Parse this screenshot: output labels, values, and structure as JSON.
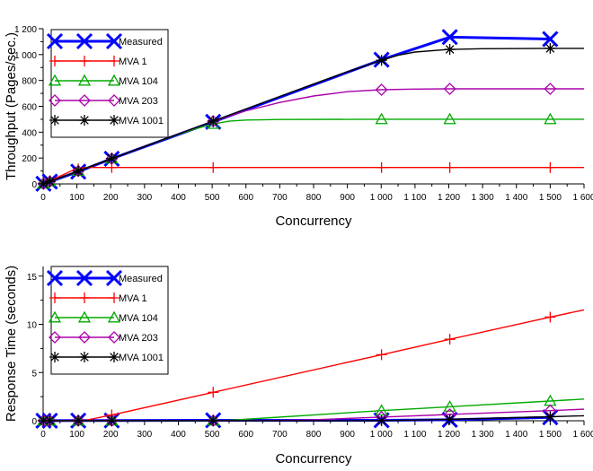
{
  "chart_data": [
    {
      "type": "line",
      "title": "",
      "xlabel": "Concurrency",
      "ylabel": "Throughput (Pages/sec.)",
      "xlim": [
        0,
        1600
      ],
      "ylim": [
        0,
        1200
      ],
      "xticks": [
        0,
        100,
        200,
        300,
        400,
        500,
        600,
        700,
        800,
        900,
        1000,
        1100,
        1200,
        1300,
        1400,
        1500,
        1600
      ],
      "xtick_labels": [
        "0",
        "100",
        "200",
        "300",
        "400",
        "500",
        "600",
        "700",
        "800",
        "900",
        "1 000",
        "1 100",
        "1 200",
        "1 300",
        "1 400",
        "1 500",
        "1 600"
      ],
      "yticks": [
        0,
        200,
        400,
        600,
        800,
        1000,
        1200
      ],
      "ytick_labels": [
        "0",
        "200",
        "400",
        "600",
        "800",
        "1 000",
        "1 200"
      ],
      "legend_position": "top-left",
      "grid": false,
      "series": [
        {
          "name": "Measured",
          "color": "#0000ff",
          "marker": "x",
          "curve": false,
          "x": [
            1,
            20,
            104,
            203,
            503,
            1001,
            1203,
            1500
          ],
          "y": [
            1,
            18,
            95,
            195,
            480,
            960,
            1135,
            1120
          ]
        },
        {
          "name": "MVA 1",
          "color": "#ff0000",
          "marker": "plus",
          "curve": true,
          "x": [
            0,
            30,
            60,
            90,
            120,
            150,
            200,
            300,
            500,
            800,
            1000,
            1200,
            1500,
            1600
          ],
          "y": [
            0,
            36,
            72,
            108,
            126,
            127,
            127,
            127,
            127,
            127,
            127,
            127,
            127,
            127
          ],
          "mx": [
            1,
            20,
            104,
            203,
            503,
            1001,
            1203,
            1500
          ]
        },
        {
          "name": "MVA 104",
          "color": "#00aa00",
          "marker": "triangle",
          "curve": true,
          "x": [
            0,
            100,
            200,
            300,
            400,
            450,
            500,
            550,
            600,
            700,
            1000,
            1200,
            1500,
            1600
          ],
          "y": [
            0,
            96,
            193,
            290,
            382,
            425,
            462,
            485,
            494,
            498,
            500,
            500,
            500,
            500
          ],
          "mx": [
            1,
            20,
            104,
            203,
            503,
            1001,
            1203,
            1500
          ]
        },
        {
          "name": "MVA 203",
          "color": "#aa00aa",
          "marker": "diamond",
          "curve": true,
          "x": [
            0,
            100,
            200,
            300,
            400,
            500,
            600,
            700,
            800,
            900,
            1000,
            1100,
            1200,
            1500,
            1600
          ],
          "y": [
            0,
            96,
            193,
            290,
            386,
            482,
            565,
            630,
            680,
            713,
            728,
            733,
            735,
            735,
            735
          ],
          "mx": [
            1,
            20,
            104,
            203,
            503,
            1001,
            1203,
            1500
          ]
        },
        {
          "name": "MVA 1001",
          "color": "#000000",
          "marker": "star",
          "curve": true,
          "x": [
            0,
            100,
            200,
            300,
            400,
            500,
            600,
            700,
            800,
            900,
            1000,
            1050,
            1100,
            1200,
            1300,
            1500,
            1600
          ],
          "y": [
            0,
            96,
            193,
            290,
            386,
            483,
            580,
            676,
            772,
            868,
            955,
            995,
            1020,
            1040,
            1045,
            1048,
            1048
          ],
          "mx": [
            1,
            20,
            104,
            203,
            503,
            1001,
            1203,
            1500
          ]
        }
      ]
    },
    {
      "type": "line",
      "title": "",
      "xlabel": "Concurrency",
      "ylabel": "Response Time (seconds)",
      "xlim": [
        0,
        1600
      ],
      "ylim": [
        0,
        16
      ],
      "xticks": [
        0,
        100,
        200,
        300,
        400,
        500,
        600,
        700,
        800,
        900,
        1000,
        1100,
        1200,
        1300,
        1400,
        1500,
        1600
      ],
      "xtick_labels": [
        "0",
        "100",
        "200",
        "300",
        "400",
        "500",
        "600",
        "700",
        "800",
        "900",
        "1 000",
        "1 100",
        "1 200",
        "1 300",
        "1 400",
        "1 500",
        "1 600"
      ],
      "yticks": [
        0,
        5,
        10,
        15
      ],
      "ytick_labels": [
        "0",
        "5",
        "10",
        "15"
      ],
      "legend_position": "top-left",
      "grid": false,
      "series": [
        {
          "name": "Measured",
          "color": "#0000ff",
          "marker": "x",
          "curve": false,
          "x": [
            1,
            20,
            104,
            203,
            503,
            1001,
            1203,
            1500
          ],
          "y": [
            0.01,
            0.01,
            0.02,
            0.03,
            0.05,
            0.05,
            0.1,
            0.35
          ]
        },
        {
          "name": "MVA 1",
          "color": "#ff0000",
          "marker": "plus",
          "curve": true,
          "x": [
            0,
            100,
            125,
            203,
            503,
            1001,
            1203,
            1500,
            1600
          ],
          "y": [
            0.01,
            0.01,
            0.05,
            0.6,
            2.95,
            6.85,
            8.45,
            10.75,
            11.5
          ],
          "mx": [
            1,
            20,
            104,
            203,
            503,
            1001,
            1203,
            1500
          ]
        },
        {
          "name": "MVA 104",
          "color": "#00aa00",
          "marker": "triangle",
          "curve": true,
          "x": [
            0,
            500,
            550,
            1001,
            1203,
            1500,
            1600
          ],
          "y": [
            0.01,
            0.01,
            0.05,
            1.05,
            1.45,
            2.05,
            2.25
          ],
          "mx": [
            1,
            20,
            104,
            203,
            503,
            1001,
            1203,
            1500
          ]
        },
        {
          "name": "MVA 203",
          "color": "#aa00aa",
          "marker": "diamond",
          "curve": true,
          "x": [
            0,
            600,
            800,
            1001,
            1203,
            1500,
            1600
          ],
          "y": [
            0.01,
            0.01,
            0.1,
            0.38,
            0.65,
            1.05,
            1.2
          ],
          "mx": [
            1,
            20,
            104,
            203,
            503,
            1001,
            1203,
            1500
          ]
        },
        {
          "name": "MVA 1001",
          "color": "#000000",
          "marker": "star",
          "curve": true,
          "x": [
            0,
            1000,
            1203,
            1500,
            1600
          ],
          "y": [
            0.01,
            0.01,
            0.15,
            0.42,
            0.52
          ],
          "mx": [
            1,
            20,
            104,
            203,
            503,
            1001,
            1203,
            1500
          ]
        }
      ]
    }
  ]
}
